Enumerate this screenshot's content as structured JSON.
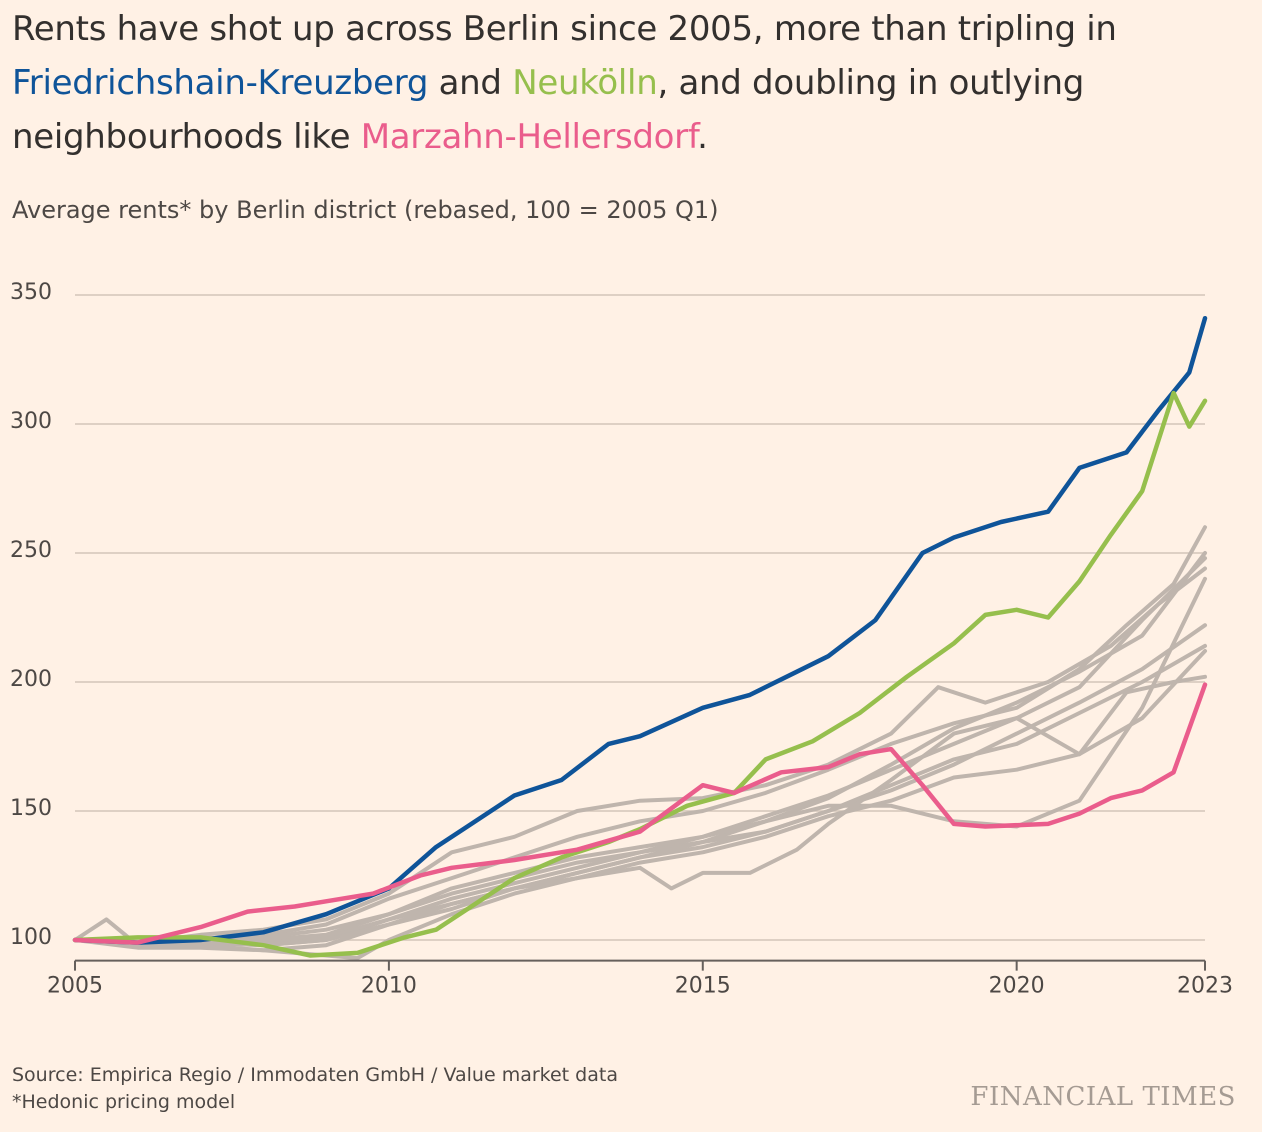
{
  "headline": {
    "part1": "Rents have shot up across Berlin since 2005, more than tripling in ",
    "district1": "Friedrichshain-Kreuzberg",
    "part2": " and ",
    "district2": "Neukölln",
    "part3": ", and doubling in outlying neighbourhoods like ",
    "district3": "Marzahn-Hellersdorf",
    "part4": "."
  },
  "footer": {
    "source": "Source: Empirica Regio / Immodaten GmbH / Value market data",
    "note": "*Hedonic pricing model"
  },
  "brand": "FINANCIAL TIMES",
  "chart_data": {
    "type": "line",
    "title": "Average rents* by Berlin district (rebased, 100 = 2005 Q1)",
    "xlabel": "",
    "ylabel": "",
    "xlim": [
      2005,
      2023
    ],
    "ylim": [
      92,
      350
    ],
    "yticks": [
      100,
      150,
      200,
      250,
      300,
      350
    ],
    "xticks": [
      2005,
      2010,
      2015,
      2020,
      2023
    ],
    "grid": "horizontal",
    "colors": {
      "highlight_fk": "#0f5499",
      "highlight_nk": "#96bf4d",
      "highlight_mh": "#ea5d8c",
      "other": "#bfb5ad",
      "grid": "#d4c6b9",
      "axis": "#66605c"
    },
    "series": [
      {
        "name": "Friedrichshain-Kreuzberg",
        "color": "#0f5499",
        "highlight": true,
        "x": [
          2005,
          2006,
          2007,
          2008,
          2009,
          2010,
          2010.75,
          2011.25,
          2012,
          2012.75,
          2013.5,
          2014,
          2015,
          2015.75,
          2016.5,
          2017,
          2017.75,
          2018.5,
          2019,
          2019.75,
          2020.5,
          2021,
          2021.75,
          2022.25,
          2022.75,
          2023
        ],
        "y": [
          100,
          99,
          100,
          103,
          110,
          120,
          136,
          144,
          156,
          162,
          176,
          179,
          190,
          195,
          204,
          210,
          224,
          250,
          256,
          262,
          266,
          283,
          289,
          305,
          320,
          341
        ]
      },
      {
        "name": "Neukölln",
        "color": "#96bf4d",
        "highlight": true,
        "x": [
          2005,
          2006,
          2007,
          2008,
          2008.75,
          2009.5,
          2010.25,
          2010.75,
          2011.5,
          2012,
          2012.75,
          2013.5,
          2014,
          2014.75,
          2015.5,
          2016,
          2016.75,
          2017.5,
          2018.25,
          2019,
          2019.5,
          2020,
          2020.5,
          2021,
          2021.5,
          2022,
          2022.5,
          2022.75,
          2023
        ],
        "y": [
          100,
          101,
          101,
          98,
          94,
          95,
          101,
          104,
          116,
          124,
          132,
          138,
          143,
          152,
          157,
          170,
          177,
          188,
          202,
          215,
          226,
          228,
          225,
          239,
          257,
          274,
          312,
          299,
          309
        ]
      },
      {
        "name": "Marzahn-Hellersdorf",
        "color": "#ea5d8c",
        "highlight": true,
        "x": [
          2005,
          2006,
          2007,
          2007.75,
          2008.5,
          2009,
          2009.75,
          2010.5,
          2011,
          2012,
          2013,
          2014,
          2015,
          2015.5,
          2016.25,
          2017,
          2017.5,
          2018,
          2018.5,
          2019,
          2019.5,
          2020.5,
          2021,
          2021.5,
          2022,
          2022.5,
          2023
        ],
        "y": [
          100,
          99,
          105,
          111,
          113,
          115,
          118,
          125,
          128,
          131,
          135,
          142,
          160,
          157,
          165,
          167,
          172,
          174,
          160,
          145,
          144,
          145,
          149,
          155,
          158,
          165,
          199
        ]
      },
      {
        "name": "",
        "color": "#bfb5ad",
        "x": [
          2005,
          2006,
          2007,
          2008,
          2009,
          2010,
          2011,
          2012,
          2013,
          2014,
          2015,
          2016,
          2017,
          2018,
          2018.75,
          2019.5,
          2020.5,
          2021.5,
          2022.25,
          2023
        ],
        "y": [
          100,
          99,
          102,
          104,
          108,
          118,
          134,
          140,
          150,
          154,
          155,
          160,
          168,
          180,
          198,
          192,
          200,
          214,
          230,
          244
        ]
      },
      {
        "name": "",
        "color": "#bfb5ad",
        "x": [
          2005,
          2006,
          2007,
          2008,
          2009,
          2010,
          2011,
          2012,
          2013,
          2014,
          2015,
          2016,
          2017,
          2018,
          2019,
          2020,
          2021,
          2021.75,
          2022.5,
          2023
        ],
        "y": [
          100,
          98,
          100,
          102,
          106,
          116,
          124,
          132,
          140,
          146,
          150,
          157,
          166,
          176,
          184,
          190,
          205,
          222,
          238,
          260
        ]
      },
      {
        "name": "",
        "color": "#bfb5ad",
        "x": [
          2005,
          2006,
          2007,
          2008,
          2009,
          2010,
          2011,
          2012,
          2013,
          2014,
          2015,
          2016,
          2017,
          2018,
          2019,
          2020,
          2021,
          2022,
          2023
        ],
        "y": [
          100,
          99,
          101,
          100,
          102,
          110,
          118,
          124,
          130,
          134,
          140,
          148,
          156,
          166,
          176,
          186,
          198,
          224,
          248
        ]
      },
      {
        "name": "",
        "color": "#bfb5ad",
        "x": [
          2005,
          2005.5,
          2006,
          2007,
          2008,
          2009,
          2010,
          2011,
          2012,
          2013,
          2014,
          2015,
          2016,
          2017,
          2018,
          2019,
          2020,
          2021,
          2022,
          2023
        ],
        "y": [
          100,
          108,
          98,
          99,
          98,
          100,
          108,
          116,
          122,
          128,
          134,
          138,
          146,
          155,
          168,
          182,
          192,
          204,
          218,
          250
        ]
      },
      {
        "name": "",
        "color": "#bfb5ad",
        "x": [
          2005,
          2006,
          2007,
          2008,
          2009,
          2010,
          2011,
          2012,
          2013,
          2014,
          2015,
          2016,
          2017,
          2018,
          2019,
          2020,
          2021,
          2022,
          2023
        ],
        "y": [
          100,
          98,
          99,
          99,
          101,
          108,
          114,
          120,
          126,
          132,
          136,
          142,
          150,
          158,
          168,
          180,
          192,
          205,
          222
        ]
      },
      {
        "name": "",
        "color": "#bfb5ad",
        "x": [
          2005,
          2006,
          2007,
          2008,
          2009,
          2010,
          2011,
          2012,
          2013,
          2014,
          2015,
          2016,
          2017,
          2018,
          2019,
          2020,
          2021,
          2022,
          2023
        ],
        "y": [
          100,
          98,
          98,
          96,
          98,
          106,
          112,
          120,
          126,
          132,
          138,
          142,
          150,
          160,
          170,
          176,
          188,
          200,
          214
        ]
      },
      {
        "name": "",
        "color": "#bfb5ad",
        "x": [
          2005,
          2006,
          2007,
          2008,
          2009,
          2009.5,
          2010,
          2011,
          2012,
          2013,
          2014,
          2014.5,
          2015,
          2015.75,
          2016.5,
          2017,
          2018,
          2019,
          2020,
          2021,
          2021.75,
          2022.5,
          2023
        ],
        "y": [
          100,
          97,
          97,
          96,
          94,
          93,
          100,
          110,
          118,
          124,
          128,
          120,
          126,
          126,
          135,
          145,
          162,
          180,
          186,
          172,
          196,
          200,
          202
        ]
      },
      {
        "name": "",
        "color": "#bfb5ad",
        "x": [
          2005,
          2006,
          2007,
          2008,
          2009,
          2010,
          2011,
          2012,
          2013,
          2014,
          2015,
          2016,
          2017,
          2018,
          2019,
          2020,
          2021,
          2022,
          2023
        ],
        "y": [
          100,
          99,
          100,
          101,
          104,
          110,
          120,
          126,
          132,
          136,
          140,
          146,
          152,
          152,
          146,
          144,
          154,
          190,
          240
        ]
      },
      {
        "name": "",
        "color": "#bfb5ad",
        "x": [
          2005,
          2006,
          2007,
          2008,
          2009,
          2010,
          2011,
          2012,
          2013,
          2014,
          2015,
          2016,
          2017,
          2018,
          2019,
          2020,
          2021,
          2022,
          2023
        ],
        "y": [
          100,
          98,
          99,
          98,
          100,
          106,
          114,
          120,
          124,
          130,
          134,
          140,
          148,
          154,
          163,
          166,
          172,
          186,
          212
        ]
      }
    ]
  }
}
